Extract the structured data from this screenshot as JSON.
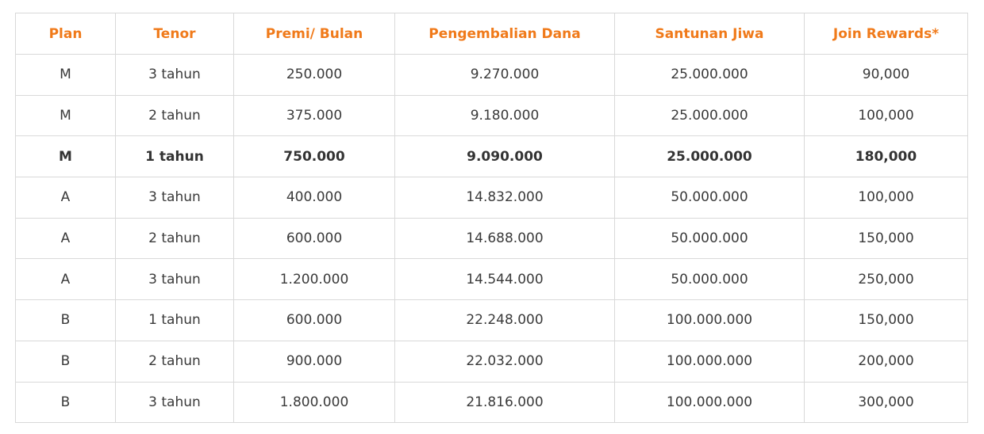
{
  "table": {
    "headers": [
      "Plan",
      "Tenor",
      "Premi/ Bulan",
      "Pengembalian Dana",
      "Santunan Jiwa",
      "Join Rewards*"
    ],
    "rows": [
      [
        "M",
        "3 tahun",
        "250.000",
        "9.270.000",
        "25.000.000",
        "90,000"
      ],
      [
        "M",
        "2 tahun",
        "375.000",
        "9.180.000",
        "25.000.000",
        "100,000"
      ],
      [
        "M",
        "1 tahun",
        "750.000",
        "9.090.000",
        "25.000.000",
        "180,000"
      ],
      [
        "A",
        "3 tahun",
        "400.000",
        "14.832.000",
        "50.000.000",
        "100,000"
      ],
      [
        "A",
        "2 tahun",
        "600.000",
        "14.688.000",
        "50.000.000",
        "150,000"
      ],
      [
        "A",
        "3 tahun",
        "1.200.000",
        "14.544.000",
        "50.000.000",
        "250,000"
      ],
      [
        "B",
        "1 tahun",
        "600.000",
        "22.248.000",
        "100.000.000",
        "150,000"
      ],
      [
        "B",
        "2 tahun",
        "900.000",
        "22.032.000",
        "100.000.000",
        "200,000"
      ],
      [
        "B",
        "3 tahun",
        "1.800.000",
        "21.816.000",
        "100.000.000",
        "300,000"
      ]
    ]
  },
  "colors": {
    "header_text": "#f07a1a",
    "body_text": "#3a3a3a",
    "border": "#d9d9d9"
  }
}
